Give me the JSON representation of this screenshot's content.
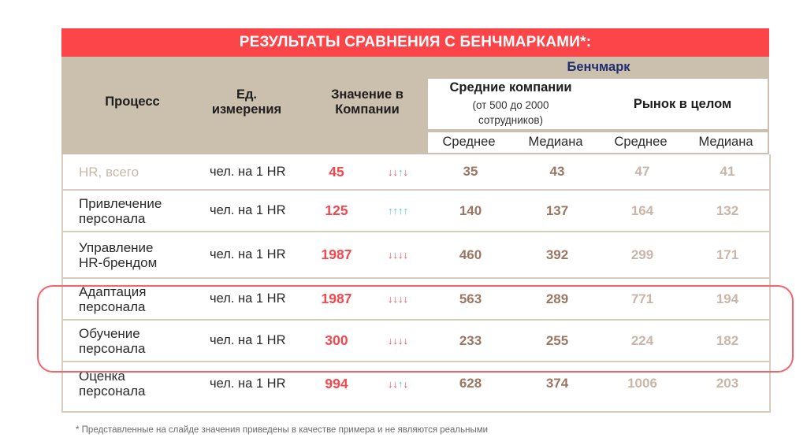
{
  "title": "РЕЗУЛЬТАТЫ СРАВНЕНИЯ С БЕНЧМАРКАМИ*:",
  "header": {
    "process": "Процесс",
    "unit_line1": "Ед.",
    "unit_line2": "измерения",
    "company_value_line1": "Значение в",
    "company_value_line2": "Компании",
    "benchmark": "Бенчмарк",
    "mid_companies_title": "Средние компании",
    "mid_companies_sub_line1": "(от 500 до 2000",
    "mid_companies_sub_line2": "сотрудников)",
    "market_title": "Рынок в целом",
    "sub_columns": [
      "Среднее",
      "Медиана",
      "Среднее",
      "Медиана"
    ]
  },
  "rows": [
    {
      "process_line1": "HR, всего",
      "process_line2": "",
      "unit": "чел. на 1 HR",
      "value": "45",
      "arrows": [
        "down",
        "down",
        "up",
        "down"
      ],
      "mid_avg": "35",
      "mid_median": "43",
      "market_avg": "47",
      "market_median": "41"
    },
    {
      "process_line1": "Привлечение",
      "process_line2": "персонала",
      "unit": "чел. на 1 HR",
      "value": "125",
      "arrows": [
        "up",
        "up",
        "up",
        "up"
      ],
      "mid_avg": "140",
      "mid_median": "137",
      "market_avg": "164",
      "market_median": "132"
    },
    {
      "process_line1": "Управление",
      "process_line2": "HR-брендом",
      "unit": "чел. на 1 HR",
      "value": "1987",
      "arrows": [
        "down",
        "down",
        "down",
        "down"
      ],
      "mid_avg": "460",
      "mid_median": "392",
      "market_avg": "299",
      "market_median": "171"
    },
    {
      "process_line1": "Адаптация",
      "process_line2": "персонала",
      "unit": "чел. на 1 HR",
      "value": "1987",
      "arrows": [
        "down",
        "down",
        "down",
        "down"
      ],
      "mid_avg": "563",
      "mid_median": "289",
      "market_avg": "771",
      "market_median": "194"
    },
    {
      "process_line1": "Обучение",
      "process_line2": "персонала",
      "unit": "чел. на 1 HR",
      "value": "300",
      "arrows": [
        "down",
        "down",
        "down",
        "down"
      ],
      "mid_avg": "233",
      "mid_median": "255",
      "market_avg": "224",
      "market_median": "182"
    },
    {
      "process_line1": "Оценка",
      "process_line2": "персонала",
      "unit": "чел. на 1 HR",
      "value": "994",
      "arrows": [
        "down",
        "down",
        "up",
        "down"
      ],
      "mid_avg": "628",
      "mid_median": "374",
      "market_avg": "1006",
      "market_median": "203"
    }
  ],
  "highlighted_rows": [
    "Адаптация персонала",
    "Обучение персонала"
  ],
  "footnote": "* Представленные на слайде значения приведены в качестве примера и не являются реальными",
  "colors": {
    "title_bg": "#fb4549",
    "header_bg": "#cbbfae",
    "benchmark_text": "#1f2e6e",
    "value_red": "#f5474d",
    "arrow_up": "#43cfbf",
    "mid_numbers": "#9b7663",
    "market_numbers": "#c9b6a8",
    "highlight_border": "#f5636a"
  }
}
